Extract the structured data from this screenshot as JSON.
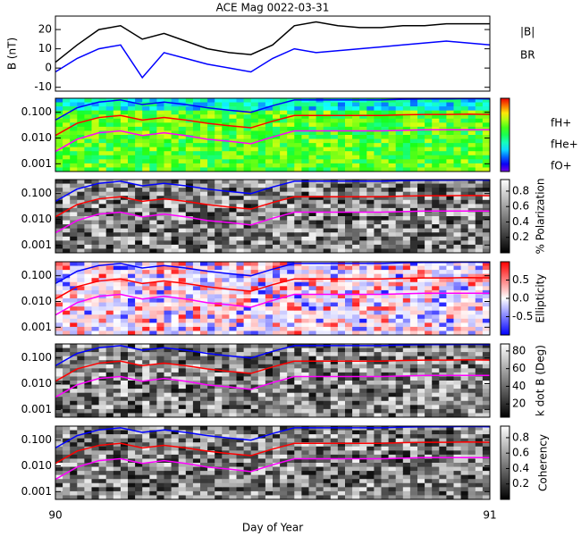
{
  "chart_data": [
    {
      "type": "line",
      "title": "ACE Mag 0022-03-31",
      "ylabel": "B (nT)",
      "x": [
        90,
        90.05,
        90.1,
        90.15,
        90.2,
        90.25,
        90.3,
        90.35,
        90.4,
        90.45,
        90.5,
        90.55,
        90.6,
        90.65,
        90.7,
        90.75,
        90.8,
        90.85,
        90.9,
        90.95,
        91
      ],
      "xlim": [
        90,
        91
      ],
      "ylim": [
        -12,
        27
      ],
      "yticks": [
        -10,
        0,
        10,
        20
      ],
      "series": [
        {
          "name": "|B|",
          "color": "#000000",
          "values": [
            3,
            12,
            20,
            22,
            15,
            18,
            14,
            10,
            8,
            7,
            12,
            22,
            24,
            22,
            21,
            21,
            22,
            22,
            23,
            23,
            23
          ]
        },
        {
          "name": "BR",
          "color": "#0000ff",
          "values": [
            -2,
            5,
            10,
            12,
            -5,
            8,
            5,
            2,
            0,
            -2,
            5,
            10,
            8,
            9,
            10,
            11,
            12,
            13,
            14,
            13,
            12
          ]
        }
      ]
    },
    {
      "type": "spectrogram",
      "log_y": true,
      "colormap": "rainbow",
      "x": [
        90,
        90.05,
        90.1,
        90.15,
        90.2,
        90.25,
        90.3,
        90.35,
        90.4,
        90.45,
        90.5,
        90.55,
        90.6,
        90.65,
        90.7,
        90.75,
        90.8,
        90.85,
        90.9,
        90.95,
        91
      ],
      "xlim": [
        90,
        91
      ],
      "ylim": [
        0.0005,
        0.35
      ],
      "yticks": [
        0.001,
        {
          "value": 0.01,
          "label": "0.010"
        },
        {
          "value": 0.1,
          "label": "0.100"
        }
      ],
      "series": [
        {
          "name": "fH+",
          "color": "#0000ff",
          "values": [
            0.05,
            0.15,
            0.25,
            0.3,
            0.2,
            0.25,
            0.2,
            0.15,
            0.12,
            0.1,
            0.18,
            0.3,
            0.3,
            0.3,
            0.3,
            0.3,
            0.32,
            0.33,
            0.33,
            0.34,
            0.33
          ]
        },
        {
          "name": "fHe+",
          "color": "#ff0000",
          "values": [
            0.0125,
            0.0375,
            0.0625,
            0.075,
            0.05,
            0.0625,
            0.05,
            0.0375,
            0.03,
            0.025,
            0.045,
            0.075,
            0.075,
            0.075,
            0.075,
            0.075,
            0.08,
            0.0825,
            0.0825,
            0.085,
            0.0825
          ]
        },
        {
          "name": "fO+",
          "color": "#ff00ff",
          "values": [
            0.003,
            0.009,
            0.016,
            0.019,
            0.0125,
            0.016,
            0.0125,
            0.009,
            0.0075,
            0.006,
            0.011,
            0.019,
            0.019,
            0.019,
            0.019,
            0.019,
            0.02,
            0.021,
            0.021,
            0.021,
            0.021
          ]
        }
      ]
    },
    {
      "type": "spectrogram",
      "log_y": true,
      "colormap": "gray",
      "x": [
        90,
        90.05,
        90.1,
        90.15,
        90.2,
        90.25,
        90.3,
        90.35,
        90.4,
        90.45,
        90.5,
        90.55,
        90.6,
        90.65,
        90.7,
        90.75,
        90.8,
        90.85,
        90.9,
        90.95,
        91
      ],
      "xlim": [
        90,
        91
      ],
      "ylim": [
        0.0005,
        0.35
      ],
      "yticks": [
        0.001,
        {
          "value": 0.01,
          "label": "0.010"
        },
        {
          "value": 0.1,
          "label": "0.100"
        }
      ],
      "colorbar": {
        "label": "% Polarization",
        "lim": [
          0,
          0.95
        ],
        "ticks": [
          0.2,
          0.4,
          0.6,
          0.8
        ]
      },
      "series": [
        {
          "color": "#0000ff",
          "values": [
            0.05,
            0.15,
            0.25,
            0.3,
            0.2,
            0.25,
            0.2,
            0.15,
            0.12,
            0.1,
            0.18,
            0.3,
            0.3,
            0.3,
            0.3,
            0.3,
            0.32,
            0.33,
            0.33,
            0.34,
            0.33
          ]
        },
        {
          "color": "#ff0000",
          "values": [
            0.0125,
            0.0375,
            0.0625,
            0.075,
            0.05,
            0.0625,
            0.05,
            0.0375,
            0.03,
            0.025,
            0.045,
            0.075,
            0.075,
            0.075,
            0.075,
            0.075,
            0.08,
            0.0825,
            0.0825,
            0.085,
            0.0825
          ]
        },
        {
          "color": "#ff00ff",
          "values": [
            0.003,
            0.009,
            0.016,
            0.019,
            0.0125,
            0.016,
            0.0125,
            0.009,
            0.0075,
            0.006,
            0.011,
            0.019,
            0.019,
            0.019,
            0.019,
            0.019,
            0.02,
            0.021,
            0.021,
            0.021,
            0.021
          ]
        }
      ]
    },
    {
      "type": "spectrogram",
      "log_y": true,
      "colormap": "bwr",
      "x": [
        90,
        90.05,
        90.1,
        90.15,
        90.2,
        90.25,
        90.3,
        90.35,
        90.4,
        90.45,
        90.5,
        90.55,
        90.6,
        90.65,
        90.7,
        90.75,
        90.8,
        90.85,
        90.9,
        90.95,
        91
      ],
      "xlim": [
        90,
        91
      ],
      "ylim": [
        0.0005,
        0.35
      ],
      "yticks": [
        0.001,
        {
          "value": 0.01,
          "label": "0.010"
        },
        {
          "value": 0.1,
          "label": "0.100"
        }
      ],
      "colorbar": {
        "label": "Ellipticity",
        "lim": [
          -1,
          1
        ],
        "ticks": [
          -0.5,
          {
            "value": 0,
            "label": "0.0"
          },
          0.5
        ]
      },
      "series": [
        {
          "color": "#0000ff",
          "values": [
            0.05,
            0.15,
            0.25,
            0.3,
            0.2,
            0.25,
            0.2,
            0.15,
            0.12,
            0.1,
            0.18,
            0.3,
            0.3,
            0.3,
            0.3,
            0.3,
            0.32,
            0.33,
            0.33,
            0.34,
            0.33
          ]
        },
        {
          "color": "#ff0000",
          "values": [
            0.0125,
            0.0375,
            0.0625,
            0.075,
            0.05,
            0.0625,
            0.05,
            0.0375,
            0.03,
            0.025,
            0.045,
            0.075,
            0.075,
            0.075,
            0.075,
            0.075,
            0.08,
            0.0825,
            0.0825,
            0.085,
            0.0825
          ]
        },
        {
          "color": "#ff00ff",
          "values": [
            0.003,
            0.009,
            0.016,
            0.019,
            0.0125,
            0.016,
            0.0125,
            0.009,
            0.0075,
            0.006,
            0.011,
            0.019,
            0.019,
            0.019,
            0.019,
            0.019,
            0.02,
            0.021,
            0.021,
            0.021,
            0.021
          ]
        }
      ]
    },
    {
      "type": "spectrogram",
      "log_y": true,
      "colormap": "gray",
      "x": [
        90,
        90.05,
        90.1,
        90.15,
        90.2,
        90.25,
        90.3,
        90.35,
        90.4,
        90.45,
        90.5,
        90.55,
        90.6,
        90.65,
        90.7,
        90.75,
        90.8,
        90.85,
        90.9,
        90.95,
        91
      ],
      "xlim": [
        90,
        91
      ],
      "ylim": [
        0.0005,
        0.35
      ],
      "yticks": [
        0.001,
        {
          "value": 0.01,
          "label": "0.010"
        },
        {
          "value": 0.1,
          "label": "0.100"
        }
      ],
      "colorbar": {
        "label": "k dot B (Deg)",
        "lim": [
          5,
          88
        ],
        "ticks": [
          20,
          40,
          60,
          80
        ]
      },
      "series": [
        {
          "color": "#0000ff",
          "values": [
            0.05,
            0.15,
            0.25,
            0.3,
            0.2,
            0.25,
            0.2,
            0.15,
            0.12,
            0.1,
            0.18,
            0.3,
            0.3,
            0.3,
            0.3,
            0.3,
            0.32,
            0.33,
            0.33,
            0.34,
            0.33
          ]
        },
        {
          "color": "#ff0000",
          "values": [
            0.0125,
            0.0375,
            0.0625,
            0.075,
            0.05,
            0.0625,
            0.05,
            0.0375,
            0.03,
            0.025,
            0.045,
            0.075,
            0.075,
            0.075,
            0.075,
            0.075,
            0.08,
            0.0825,
            0.0825,
            0.085,
            0.0825
          ]
        },
        {
          "color": "#ff00ff",
          "values": [
            0.003,
            0.009,
            0.016,
            0.019,
            0.0125,
            0.016,
            0.0125,
            0.009,
            0.0075,
            0.006,
            0.011,
            0.019,
            0.019,
            0.019,
            0.019,
            0.019,
            0.02,
            0.021,
            0.021,
            0.021,
            0.021
          ]
        }
      ]
    },
    {
      "type": "spectrogram",
      "log_y": true,
      "colormap": "gray",
      "x": [
        90,
        90.05,
        90.1,
        90.15,
        90.2,
        90.25,
        90.3,
        90.35,
        90.4,
        90.45,
        90.5,
        90.55,
        90.6,
        90.65,
        90.7,
        90.75,
        90.8,
        90.85,
        90.9,
        90.95,
        91
      ],
      "xlim": [
        90,
        91
      ],
      "ylim": [
        0.0005,
        0.35
      ],
      "yticks": [
        0.001,
        {
          "value": 0.01,
          "label": "0.010"
        },
        {
          "value": 0.1,
          "label": "0.100"
        }
      ],
      "xticks": [
        90,
        91
      ],
      "xlabel": "Day of Year",
      "colorbar": {
        "label": "Coherency",
        "lim": [
          0,
          0.95
        ],
        "ticks": [
          0.2,
          0.4,
          0.6,
          0.8
        ]
      },
      "series": [
        {
          "color": "#0000ff",
          "values": [
            0.05,
            0.15,
            0.25,
            0.3,
            0.2,
            0.25,
            0.2,
            0.15,
            0.12,
            0.1,
            0.18,
            0.3,
            0.3,
            0.3,
            0.3,
            0.3,
            0.32,
            0.33,
            0.33,
            0.34,
            0.33
          ]
        },
        {
          "color": "#ff0000",
          "values": [
            0.0125,
            0.0375,
            0.0625,
            0.075,
            0.05,
            0.0625,
            0.05,
            0.0375,
            0.03,
            0.025,
            0.045,
            0.075,
            0.075,
            0.075,
            0.075,
            0.075,
            0.08,
            0.0825,
            0.0825,
            0.085,
            0.0825
          ]
        },
        {
          "color": "#ff00ff",
          "values": [
            0.003,
            0.009,
            0.016,
            0.019,
            0.0125,
            0.016,
            0.0125,
            0.009,
            0.0075,
            0.006,
            0.011,
            0.019,
            0.019,
            0.019,
            0.019,
            0.019,
            0.02,
            0.021,
            0.021,
            0.021,
            0.021
          ]
        }
      ]
    }
  ]
}
